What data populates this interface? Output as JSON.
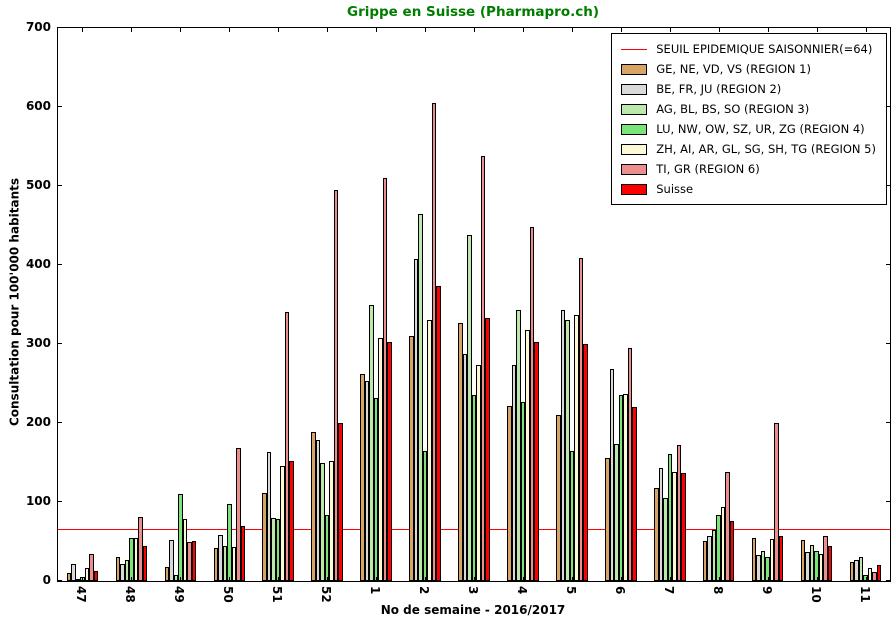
{
  "title": "Grippe en Suisse (Pharmapro.ch)",
  "title_color": "#007d00",
  "chart_data": {
    "type": "bar",
    "title": "Grippe en Suisse (Pharmapro.ch)",
    "xlabel": "No de semaine - 2016/2017",
    "ylabel": "Consultation pour 100'000 habitants",
    "ylim": [
      0,
      700
    ],
    "yticks": [
      0,
      100,
      200,
      300,
      400,
      500,
      600,
      700
    ],
    "grid": false,
    "legend_position": "upper right",
    "categories": [
      "47",
      "48",
      "49",
      "50",
      "51",
      "52",
      "1",
      "2",
      "3",
      "4",
      "5",
      "6",
      "7",
      "8",
      "9",
      "10",
      "11"
    ],
    "threshold": {
      "label": "SEUIL EPIDEMIQUE SAISONNIER(=64)",
      "value": 64,
      "color": "#ff0000"
    },
    "series": [
      {
        "name": "GE, NE, VD, VS (REGION 1)",
        "color": "#d7a465",
        "values": [
          10,
          31,
          18,
          42,
          111,
          188,
          262,
          310,
          327,
          222,
          210,
          156,
          118,
          51,
          55,
          52,
          24
        ]
      },
      {
        "name": "BE, FR, JU (REGION 2)",
        "color": "#d9d9d9",
        "values": [
          22,
          22,
          52,
          58,
          163,
          178,
          253,
          408,
          287,
          274,
          343,
          268,
          143,
          57,
          33,
          37,
          27
        ]
      },
      {
        "name": "AG, BL, BS, SO (REGION 3)",
        "color": "#bce8ac",
        "values": [
          2,
          27,
          8,
          44,
          80,
          150,
          350,
          465,
          438,
          343,
          330,
          173,
          105,
          65,
          38,
          46,
          30
        ]
      },
      {
        "name": "LU, NW, OW, SZ, UR, ZG (REGION 4)",
        "color": "#79e579",
        "values": [
          5,
          54,
          110,
          97,
          78,
          84,
          232,
          165,
          235,
          226,
          165,
          236,
          161,
          83,
          31,
          38,
          7
        ]
      },
      {
        "name": "ZH, AI, AR, GL, SG, SH, TG (REGION 5)",
        "color": "#fcfad6",
        "values": [
          17,
          55,
          79,
          43,
          145,
          152,
          308,
          330,
          273,
          318,
          337,
          237,
          138,
          94,
          53,
          34,
          17
        ]
      },
      {
        "name": "TI, GR (REGION 6)",
        "color": "#ed8e8e",
        "values": [
          34,
          81,
          50,
          168,
          340,
          495,
          510,
          605,
          538,
          448,
          409,
          295,
          172,
          138,
          200,
          57,
          12
        ]
      },
      {
        "name": "Suisse",
        "color": "#ff0000",
        "values": [
          13,
          44,
          51,
          70,
          152,
          200,
          302,
          373,
          333,
          303,
          300,
          220,
          137,
          76,
          57,
          44,
          20
        ]
      }
    ]
  }
}
